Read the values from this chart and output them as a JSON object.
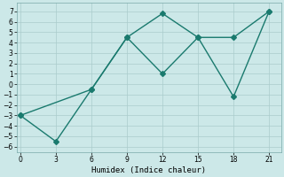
{
  "line1_x": [
    0,
    3,
    6,
    9,
    12,
    15,
    18,
    21
  ],
  "line1_y": [
    -3,
    -5.5,
    -0.5,
    4.5,
    6.8,
    4.5,
    -1.2,
    7
  ],
  "line2_x": [
    0,
    6,
    9,
    12,
    15,
    18,
    21
  ],
  "line2_y": [
    -3,
    -0.5,
    4.5,
    1.0,
    4.5,
    4.5,
    7
  ],
  "line_color": "#1a7a6e",
  "bg_color": "#cce8e8",
  "grid_color": "#aacccc",
  "xlabel": "Humidex (Indice chaleur)",
  "ylim": [
    -6.5,
    7.8
  ],
  "xlim": [
    -0.3,
    22
  ],
  "xticks": [
    0,
    3,
    6,
    9,
    12,
    15,
    18,
    21
  ],
  "yticks": [
    -6,
    -5,
    -4,
    -3,
    -2,
    -1,
    0,
    1,
    2,
    3,
    4,
    5,
    6,
    7
  ],
  "marker_size": 3,
  "line_width": 1.0
}
